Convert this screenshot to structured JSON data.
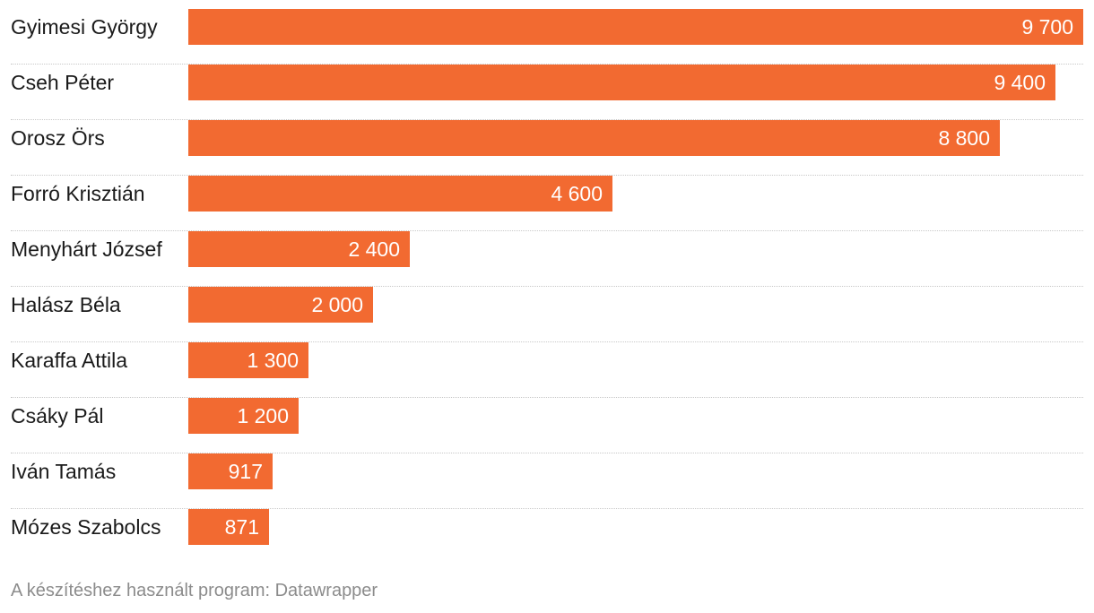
{
  "chart_data": {
    "type": "bar",
    "orientation": "horizontal",
    "categories": [
      "Gyimesi György",
      "Cseh Péter",
      "Orosz Örs",
      "Forró Krisztián",
      "Menyhárt József",
      "Halász Béla",
      "Karaffa Attila",
      "Csáky Pál",
      "Iván Tamás",
      "Mózes Szabolcs"
    ],
    "values": [
      9700,
      9400,
      8800,
      4600,
      2400,
      2000,
      1300,
      1200,
      917,
      871
    ],
    "value_labels": [
      "9 700",
      "9 400",
      "8 800",
      "4 600",
      "2 400",
      "2 000",
      "1 300",
      "1 200",
      "917",
      "871"
    ],
    "xlim": [
      0,
      9700
    ],
    "bar_color": "#f26a31",
    "title": "",
    "xlabel": "",
    "ylabel": ""
  },
  "footer": {
    "credit": "A készítéshez használt program: Datawrapper"
  }
}
